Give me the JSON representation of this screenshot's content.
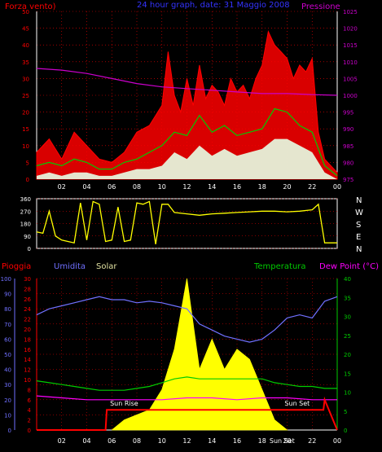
{
  "header": {
    "left_label": "Forza vento)",
    "center_label": "24 hour graph, date: 31 Maggio 2008",
    "right_label": "Pressione"
  },
  "colors": {
    "wind": "#ff0000",
    "gust": "#ff0000",
    "wind_avg": "#00cc00",
    "wind_min": "#e6ffe6",
    "pressure": "#cc00cc",
    "direction": "#ffff00",
    "rain": "#ff0000",
    "humidity": "#7070ff",
    "solar": "#ffff00",
    "temperature": "#00cc00",
    "dewpoint": "#ff00ff",
    "axis": "#ffffff",
    "grid": "#ff0000"
  },
  "bottom_header": {
    "rain": "Pioggia",
    "humidity": "Umidita",
    "solar": "Solar",
    "temperature": "Temperatura",
    "dewpoint": "Dew Point (°C)"
  },
  "direction_labels": [
    "N",
    "W",
    "S",
    "E",
    "N"
  ],
  "chart_data": [
    {
      "type": "line",
      "name": "wind",
      "x_ticks": [
        "02",
        "04",
        "06",
        "08",
        "10",
        "12",
        "14",
        "16",
        "18",
        "20",
        "22",
        "00"
      ],
      "y_left_ticks": [
        0,
        5,
        10,
        15,
        20,
        25,
        30,
        35,
        40,
        45,
        50
      ],
      "ylim_left": [
        0,
        50
      ],
      "y_right_ticks": [
        975,
        980,
        985,
        990,
        995,
        1000,
        1005,
        1010,
        1015,
        1020,
        1025
      ],
      "ylim_right": [
        975,
        1025
      ],
      "series": [
        {
          "key": "gust",
          "x": [
            0,
            1,
            2,
            3,
            4,
            5,
            6,
            7,
            8,
            9,
            10,
            10.5,
            11,
            11.5,
            12,
            12.5,
            13,
            13.5,
            14,
            14.5,
            15,
            15.5,
            16,
            16.5,
            17,
            17.5,
            18,
            18.5,
            19,
            19.5,
            20,
            20.5,
            21,
            21.5,
            22,
            22.5,
            23,
            24
          ],
          "values": [
            8,
            12,
            6,
            14,
            10,
            6,
            5,
            8,
            14,
            16,
            22,
            38,
            25,
            20,
            30,
            22,
            34,
            24,
            28,
            26,
            22,
            30,
            26,
            28,
            24,
            30,
            34,
            44,
            40,
            38,
            36,
            30,
            34,
            32,
            36,
            14,
            6,
            2
          ]
        },
        {
          "key": "wind_avg",
          "x": [
            0,
            1,
            2,
            3,
            4,
            5,
            6,
            7,
            8,
            9,
            10,
            11,
            12,
            13,
            14,
            15,
            16,
            17,
            18,
            19,
            20,
            21,
            22,
            23,
            24
          ],
          "values": [
            4,
            5,
            4,
            6,
            5,
            3,
            3,
            5,
            6,
            8,
            10,
            14,
            13,
            19,
            14,
            16,
            13,
            14,
            15,
            21,
            20,
            16,
            14,
            4,
            1
          ]
        },
        {
          "key": "wind_min",
          "x": [
            0,
            1,
            2,
            3,
            4,
            5,
            6,
            7,
            8,
            9,
            10,
            11,
            12,
            13,
            14,
            15,
            16,
            17,
            18,
            19,
            20,
            21,
            22,
            23,
            24
          ],
          "values": [
            1,
            2,
            1,
            2,
            2,
            1,
            1,
            2,
            3,
            3,
            4,
            8,
            6,
            10,
            7,
            9,
            7,
            8,
            9,
            12,
            12,
            10,
            8,
            2,
            0
          ]
        },
        {
          "key": "pressure",
          "x": [
            0,
            2,
            4,
            6,
            8,
            10,
            12,
            14,
            16,
            18,
            20,
            22,
            24
          ],
          "values": [
            1008,
            1007.5,
            1006.5,
            1005,
            1003.5,
            1002.5,
            1002,
            1001.5,
            1001,
            1000.5,
            1000.5,
            1000.2,
            1000
          ]
        }
      ]
    },
    {
      "type": "line",
      "name": "wind-direction",
      "y_ticks": [
        0,
        90,
        180,
        270,
        360
      ],
      "ylim": [
        0,
        360
      ],
      "series": [
        {
          "key": "direction",
          "x": [
            0,
            0.5,
            1,
            1.5,
            2,
            2.5,
            3,
            3.5,
            4,
            4.5,
            5,
            5.5,
            6,
            6.5,
            7,
            7.5,
            8,
            8.5,
            9,
            9.5,
            10,
            10.5,
            11,
            12,
            13,
            14,
            15,
            16,
            17,
            18,
            19,
            20,
            21,
            22,
            22.5,
            23,
            24
          ],
          "values": [
            120,
            110,
            270,
            90,
            60,
            50,
            40,
            330,
            60,
            340,
            320,
            50,
            60,
            300,
            50,
            60,
            330,
            320,
            340,
            30,
            320,
            320,
            260,
            250,
            240,
            250,
            255,
            260,
            265,
            270,
            270,
            265,
            270,
            280,
            320,
            40,
            40
          ]
        }
      ]
    },
    {
      "type": "line",
      "name": "climate",
      "x_ticks": [
        "02",
        "04",
        "06",
        "08",
        "10",
        "12",
        "14",
        "16",
        "18",
        "20",
        "22",
        "00"
      ],
      "y_humidity_ticks": [
        0,
        10,
        20,
        30,
        40,
        50,
        60,
        70,
        80,
        90,
        100
      ],
      "ylim_humidity": [
        0,
        100
      ],
      "y_rain_ticks": [
        0,
        2,
        4,
        6,
        8,
        10,
        12,
        14,
        16,
        18,
        20,
        22,
        24,
        26,
        28,
        30
      ],
      "ylim_rain": [
        0,
        30
      ],
      "y_temp_ticks": [
        0,
        5,
        10,
        15,
        20,
        25,
        30,
        35,
        40
      ],
      "ylim_temp": [
        0,
        40
      ],
      "annotations": [
        "Sun Rise",
        "Sun Set",
        "Sun Set"
      ],
      "series": [
        {
          "key": "humidity",
          "x": [
            0,
            1,
            2,
            3,
            4,
            5,
            6,
            7,
            8,
            9,
            10,
            11,
            12,
            13,
            14,
            15,
            16,
            17,
            18,
            19,
            20,
            21,
            22,
            23,
            24
          ],
          "values": [
            76,
            80,
            82,
            84,
            86,
            88,
            86,
            86,
            84,
            85,
            84,
            82,
            80,
            70,
            66,
            62,
            60,
            58,
            60,
            66,
            74,
            76,
            74,
            85,
            88
          ]
        },
        {
          "key": "temperature",
          "x": [
            0,
            1,
            2,
            3,
            4,
            5,
            6,
            7,
            8,
            9,
            10,
            11,
            12,
            13,
            14,
            15,
            16,
            17,
            18,
            19,
            20,
            21,
            22,
            23,
            24
          ],
          "values": [
            13,
            12.5,
            12,
            11.5,
            11,
            10.5,
            10.5,
            10.5,
            11,
            11.5,
            12.5,
            13.5,
            14,
            13.5,
            13.5,
            13.5,
            13.5,
            13.5,
            13.5,
            12.5,
            12,
            11.5,
            11.5,
            11,
            11
          ]
        },
        {
          "key": "dewpoint",
          "x": [
            0,
            2,
            4,
            6,
            8,
            10,
            12,
            14,
            16,
            18,
            20,
            22,
            24
          ],
          "values": [
            9,
            8.5,
            8,
            8,
            8,
            8,
            8.5,
            8.5,
            8,
            8.5,
            8.5,
            8,
            8
          ]
        },
        {
          "key": "rain",
          "x": [
            0,
            5.5,
            5.6,
            22.9,
            23,
            24
          ],
          "values": [
            0,
            0,
            4,
            4,
            6,
            0
          ]
        },
        {
          "key": "solar",
          "x": [
            6,
            7,
            8,
            9,
            10,
            11,
            12,
            13,
            14,
            15,
            16,
            17,
            18,
            19,
            20
          ],
          "values": [
            0,
            2,
            3,
            4,
            8,
            16,
            30,
            12,
            18,
            12,
            16,
            14,
            8,
            2,
            0
          ]
        }
      ]
    }
  ]
}
